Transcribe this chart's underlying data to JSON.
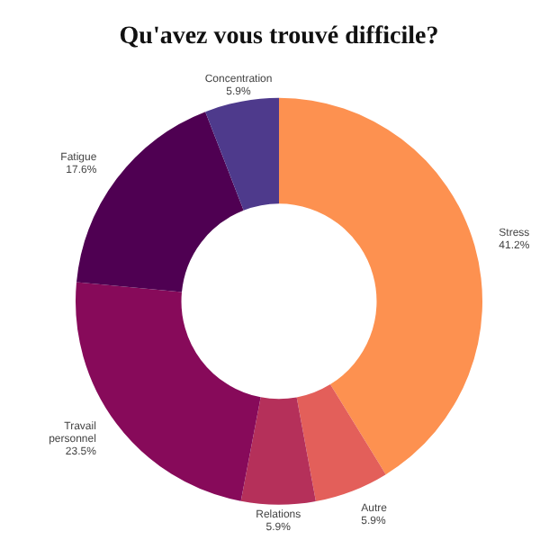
{
  "chart_data": {
    "type": "donut",
    "title": "Qu'avez vous trouvé difficile?",
    "categories": [
      "Stress",
      "Autre",
      "Relations",
      "Travail personnel",
      "Fatigue",
      "Concentration"
    ],
    "values": [
      41.2,
      5.9,
      5.9,
      23.5,
      17.6,
      5.9
    ],
    "colors": [
      "#fd9150",
      "#e35f5a",
      "#b5305a",
      "#870a5a",
      "#4f0052",
      "#4e3a8c"
    ],
    "value_labels": [
      "41.2%",
      "5.9%",
      "5.9%",
      "23.5%",
      "17.6%",
      "5.9%"
    ],
    "legend": false
  }
}
